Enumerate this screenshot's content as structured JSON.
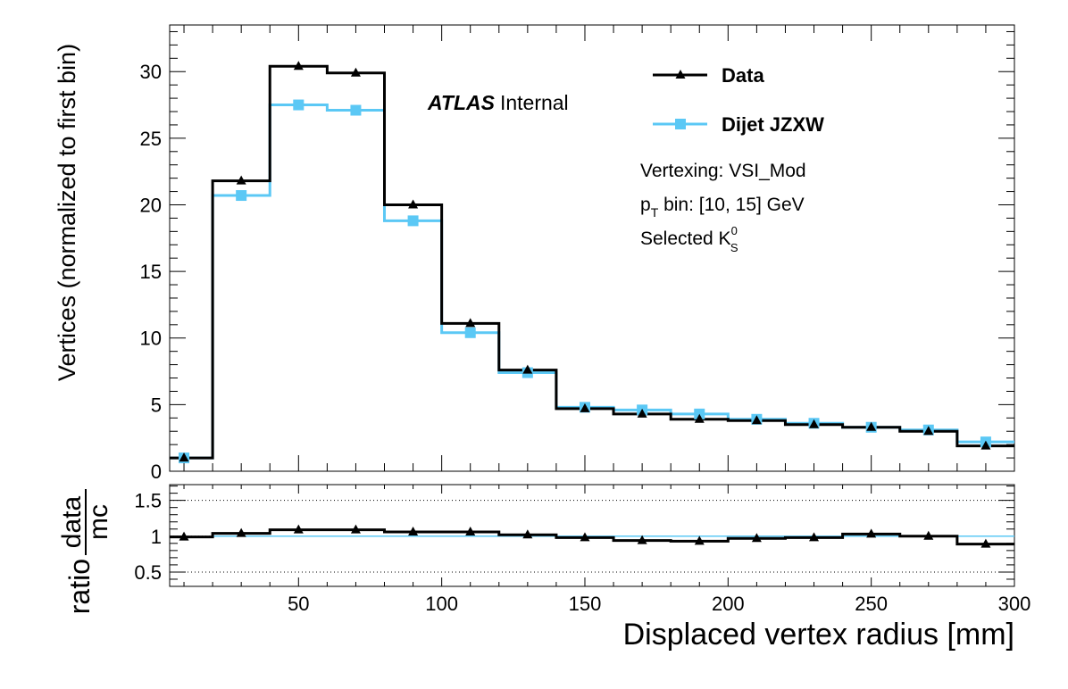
{
  "chart_data": [
    {
      "type": "line",
      "subtype": "step-histogram",
      "xlabel": "",
      "ylabel": "Vertices (normalized to first bin)",
      "xlim": [
        5,
        300
      ],
      "ylim": [
        0,
        33.5
      ],
      "yticks": [
        0,
        5,
        10,
        15,
        20,
        25,
        30
      ],
      "yticklabels": [
        "0",
        "5",
        "10",
        "15",
        "20",
        "25",
        "30"
      ],
      "bin_edges": [
        5,
        20,
        40,
        60,
        80,
        100,
        120,
        140,
        160,
        180,
        200,
        220,
        240,
        260,
        280,
        300
      ],
      "x": [
        10,
        30,
        50,
        70,
        90,
        110,
        130,
        150,
        170,
        190,
        210,
        230,
        250,
        270,
        290
      ],
      "series": [
        {
          "name": "Data",
          "color": "#000000",
          "marker": "triangle",
          "values": [
            1.0,
            21.8,
            30.4,
            29.9,
            20.0,
            11.1,
            7.6,
            4.7,
            4.3,
            3.9,
            3.8,
            3.5,
            3.3,
            3.0,
            1.9
          ]
        },
        {
          "name": "Dijet JZXW",
          "color": "#5bc8f5",
          "marker": "square",
          "values": [
            1.0,
            20.7,
            27.5,
            27.1,
            18.8,
            10.4,
            7.4,
            4.8,
            4.6,
            4.3,
            3.9,
            3.6,
            3.3,
            3.1,
            2.2
          ]
        }
      ],
      "legend_position": "top-right",
      "annotations": {
        "atlas": "ATLAS",
        "atlas_suffix": "Internal",
        "vertexing": "Vertexing: VSI_Mod",
        "pt_p": "p",
        "pt_sub": "T",
        "pt_rest": " bin: [10, 15] GeV",
        "selected": "Selected K",
        "selected_sup": "0",
        "selected_sub": "S"
      }
    },
    {
      "type": "line",
      "subtype": "ratio",
      "xlabel": "Displaced vertex radius [mm]",
      "ylabel_prefix": "ratio",
      "ylabel_num": "data",
      "ylabel_den": "mc",
      "xlim": [
        5,
        300
      ],
      "ylim": [
        0.3,
        1.72
      ],
      "xticks": [
        50,
        100,
        150,
        200,
        250,
        300
      ],
      "xticklabels": [
        "50",
        "100",
        "150",
        "200",
        "250",
        "300"
      ],
      "yticks": [
        0.5,
        1,
        1.5
      ],
      "yticklabels": [
        "0.5",
        "1",
        "1.5"
      ],
      "gridlines_dotted": [
        0.5,
        1,
        1.5
      ],
      "reference_line": 1,
      "x": [
        10,
        30,
        50,
        70,
        90,
        110,
        130,
        150,
        170,
        190,
        210,
        230,
        250,
        270,
        290
      ],
      "values": [
        0.99,
        1.04,
        1.09,
        1.09,
        1.06,
        1.06,
        1.02,
        0.98,
        0.94,
        0.93,
        0.97,
        0.98,
        1.03,
        1.0,
        0.89
      ]
    }
  ]
}
